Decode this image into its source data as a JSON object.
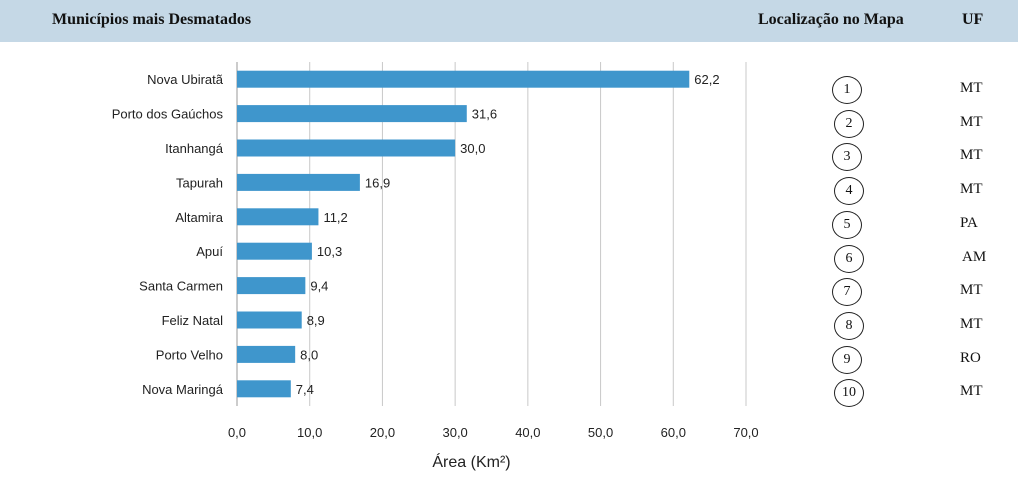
{
  "header": {
    "title": "Municípios mais Desmatados",
    "map_col": "Localização no Mapa",
    "uf_col": "UF"
  },
  "chart_data": {
    "type": "bar",
    "orientation": "horizontal",
    "categories": [
      "Nova Ubiratã",
      "Porto dos Gaúchos",
      "Itanhangá",
      "Tapurah",
      "Altamira",
      "Apuí",
      "Santa Carmen",
      "Feliz Natal",
      "Porto Velho",
      "Nova Maringá"
    ],
    "values": [
      62.2,
      31.6,
      30.0,
      16.9,
      11.2,
      10.3,
      9.4,
      8.9,
      8.0,
      7.4
    ],
    "value_labels": [
      "62,2",
      "31,6",
      "30,0",
      "16,9",
      "11,2",
      "10,3",
      "9,4",
      "8,9",
      "8,0",
      "7,4"
    ],
    "xlabel": "Área (Km²)",
    "xlim": [
      0,
      70
    ],
    "xticks": [
      "0,0",
      "10,0",
      "20,0",
      "30,0",
      "40,0",
      "50,0",
      "60,0",
      "70,0"
    ],
    "grid": true,
    "bar_color": "#3f96cc"
  },
  "table": {
    "rows": [
      {
        "map": "1",
        "uf": "MT"
      },
      {
        "map": "2",
        "uf": "MT"
      },
      {
        "map": "3",
        "uf": "MT"
      },
      {
        "map": "4",
        "uf": "MT"
      },
      {
        "map": "5",
        "uf": "PA"
      },
      {
        "map": "6",
        "uf": "AM"
      },
      {
        "map": "7",
        "uf": "MT"
      },
      {
        "map": "8",
        "uf": "MT"
      },
      {
        "map": "9",
        "uf": "RO"
      },
      {
        "map": "10",
        "uf": "MT"
      }
    ]
  }
}
